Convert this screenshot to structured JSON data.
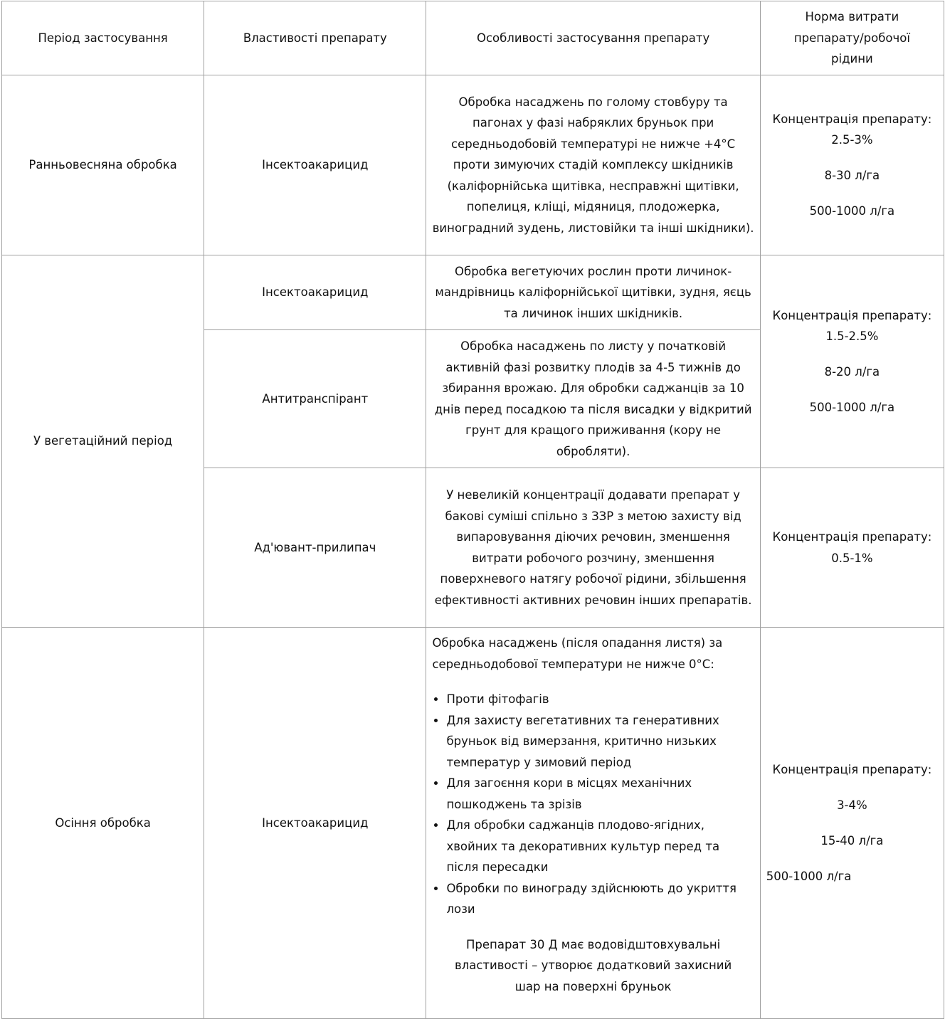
{
  "header": {
    "period": "Період застосування",
    "properties": "Властивості препарату",
    "features": "Особливості застосування препарату",
    "norm": "Норма витрати препарату/робочої рідини"
  },
  "rows": [
    {
      "period": "Ранньовесняна обробка",
      "properties": "Інсектоакарицид",
      "features": "Обробка насаджень по голому стовбуру та пагонах у фазі набряклих бруньок при середньодобовій температурі не нижче +4°C проти зимуючих стадій комплексу шкідників (каліфорнійська щитівка, несправжні щитівки, попелиця, кліщі, мідяниця, плодожерка, виноградний зудень, листовійки та інші шкідники).",
      "norm": {
        "label": "Концентрація препарату:",
        "concentration": "2.5-3%",
        "dose": "8-30 л/га",
        "volume": "500-1000 л/га"
      }
    },
    {
      "period": "У вегетаційний період",
      "subrows": [
        {
          "properties": "Інсектоакарицид",
          "features": "Обробка вегетуючих рослин проти личинок-мандрівниць каліфорнійської щитівки, зудня, яєць та личинок інших шкідників."
        },
        {
          "properties": "Антитранспірант",
          "features": "Обробка насаджень по листу у початковій активній фазі розвитку плодів за 4-5 тижнів до збирання врожаю. Для обробки саджанців за 10 днів перед посадкою та після висадки у відкритий грунт для кращого приживання (кору не обробляти)."
        },
        {
          "properties": "Ад'ювант-прилипач",
          "features": "У невеликій концентрації додавати препарат у бакові суміші спільно з ЗЗР з метою захисту від випаровування діючих речовин, зменшення витрати робочого розчину, зменшення поверхневого натягу робочої рідини, збільшення ефективності активних речовин інших препаратів."
        }
      ],
      "norm": {
        "label": "Концентрація препарату:",
        "concentration": "1.5-2.5%",
        "dose": "8-20 л/га",
        "volume": "500-1000 л/га"
      },
      "norm2": {
        "label": "Концентрація препарату:",
        "concentration": "0.5-1%"
      }
    },
    {
      "period": "Осіння обробка",
      "properties": "Інсектоакарицид",
      "features_intro": "Обробка насаджень (після опадання листя) за середньодобової температури не нижче 0°C:",
      "features_list": [
        "Проти фітофагів",
        "Для захисту вегетативних та генеративних бруньок від вимерзання, критично низьких температур у зимовий період",
        "Для загоєння кори в місцях механічних пошкоджень та зрізів",
        "Для обробки саджанців плодово-ягідних, хвойних та декоративних культур перед та після пересадки",
        "Обробки по винограду здійснюють до укриття лози"
      ],
      "features_note": "Препарат 30 Д має водовідштовхувальні властивості – утворює додатковий захисний шар на поверхні бруньок",
      "norm": {
        "label": "Концентрація препарату:",
        "concentration": "3-4%",
        "dose": "15-40 л/га",
        "volume": "500-1000 л/га"
      }
    }
  ]
}
